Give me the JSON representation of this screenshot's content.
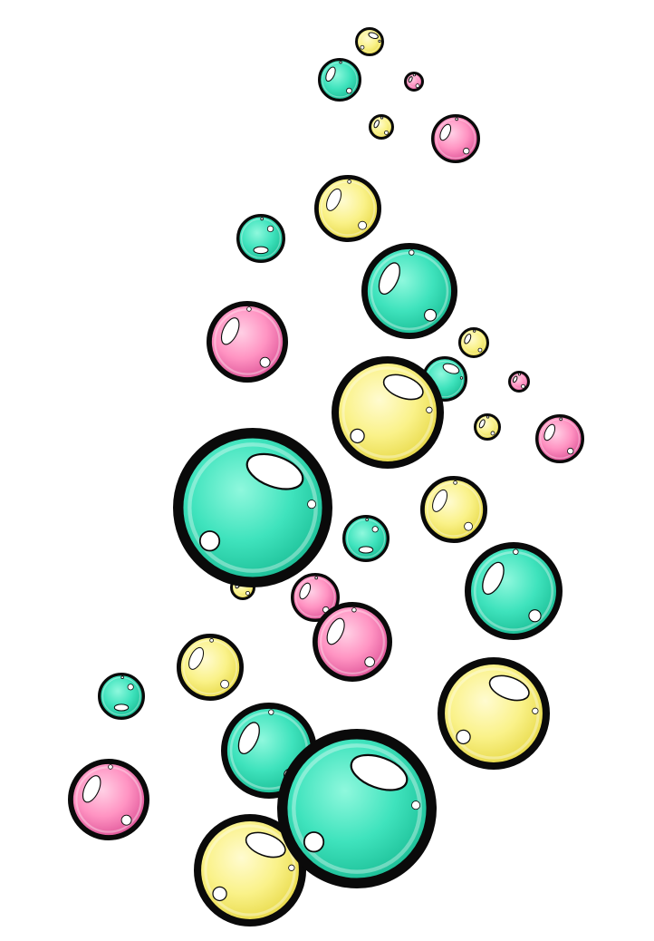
{
  "image": {
    "background": "#ffffff",
    "palette": {
      "teal": {
        "light": "#7ff5d6",
        "mid": "#35e0b8",
        "dark": "#18b890"
      },
      "yellow": {
        "light": "#fff9b8",
        "mid": "#f7ef7a",
        "dark": "#e9dc45"
      },
      "pink": {
        "light": "#ffc0dc",
        "mid": "#ff8fbf",
        "dark": "#e35b98"
      },
      "outline": "#0a0a0a",
      "highlight": "#ffffff"
    },
    "bubbles": [
      {
        "color": "yellow",
        "id": "b1"
      },
      {
        "color": "teal",
        "id": "b2"
      },
      {
        "color": "pink",
        "id": "b3"
      },
      {
        "color": "yellow",
        "id": "b4"
      },
      {
        "color": "pink",
        "id": "b5"
      },
      {
        "color": "yellow",
        "id": "b6"
      },
      {
        "color": "teal",
        "id": "b7"
      },
      {
        "color": "teal",
        "id": "b8"
      },
      {
        "color": "pink",
        "id": "b9"
      },
      {
        "color": "yellow",
        "id": "b10"
      },
      {
        "color": "yellow",
        "id": "b11"
      },
      {
        "color": "teal",
        "id": "b12"
      },
      {
        "color": "pink",
        "id": "b13"
      },
      {
        "color": "yellow",
        "id": "b14"
      },
      {
        "color": "pink",
        "id": "b15"
      },
      {
        "color": "teal",
        "id": "b16"
      },
      {
        "color": "yellow",
        "id": "b17"
      },
      {
        "color": "teal",
        "id": "b18"
      },
      {
        "color": "teal",
        "id": "b19"
      },
      {
        "color": "pink",
        "id": "b20"
      },
      {
        "color": "pink",
        "id": "b21"
      },
      {
        "color": "yellow",
        "id": "b22"
      },
      {
        "color": "teal",
        "id": "b23"
      },
      {
        "color": "yellow",
        "id": "b24"
      },
      {
        "color": "pink",
        "id": "b25"
      },
      {
        "color": "teal",
        "id": "b26"
      },
      {
        "color": "yellow",
        "id": "b27"
      },
      {
        "color": "teal",
        "id": "b28"
      },
      {
        "color": "yellow",
        "id": "b29"
      }
    ]
  }
}
